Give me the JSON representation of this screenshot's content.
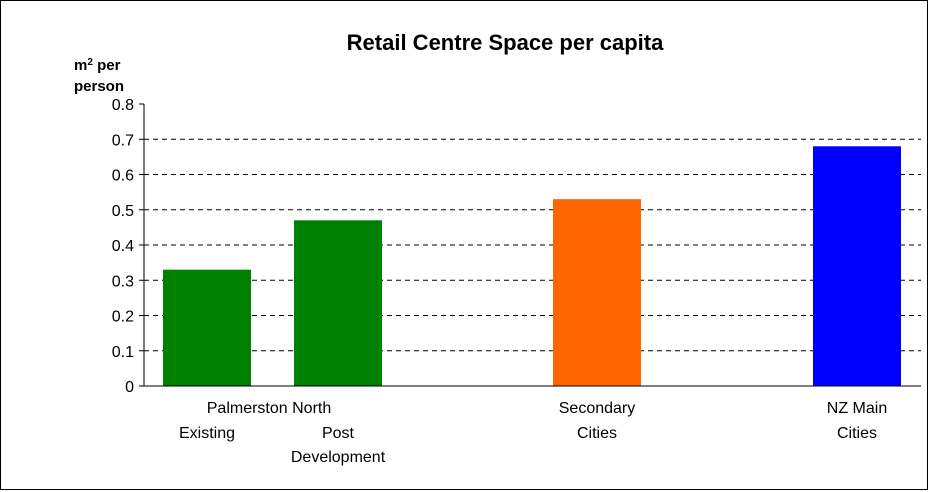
{
  "chart_data": {
    "type": "bar",
    "title": "Retail Centre Space per capita",
    "ylabel": {
      "base": "m",
      "superscript": "2",
      "line1_rest": " per",
      "line2": "person"
    },
    "ylim": [
      0,
      0.8
    ],
    "yticks": [
      "0",
      "0.1",
      "0.2",
      "0.3",
      "0.4",
      "0.5",
      "0.6",
      "0.7",
      "0.8"
    ],
    "grid": "dashed horizontal",
    "categories": [
      "Palmerston North Existing",
      "Palmerston North Post Development",
      "Secondary Cities",
      "NZ Main Cities"
    ],
    "values": [
      0.33,
      0.47,
      0.53,
      0.68
    ],
    "colors": [
      "#008000",
      "#008000",
      "#FF6600",
      "#0000FF"
    ],
    "category_labels": {
      "group_label": "Palmerston North",
      "existing": "Existing",
      "post_line1": "Post",
      "post_line2": "Development",
      "secondary_line1": "Secondary",
      "secondary_line2": "Cities",
      "main_line1": "NZ Main",
      "main_line2": "Cities"
    }
  }
}
